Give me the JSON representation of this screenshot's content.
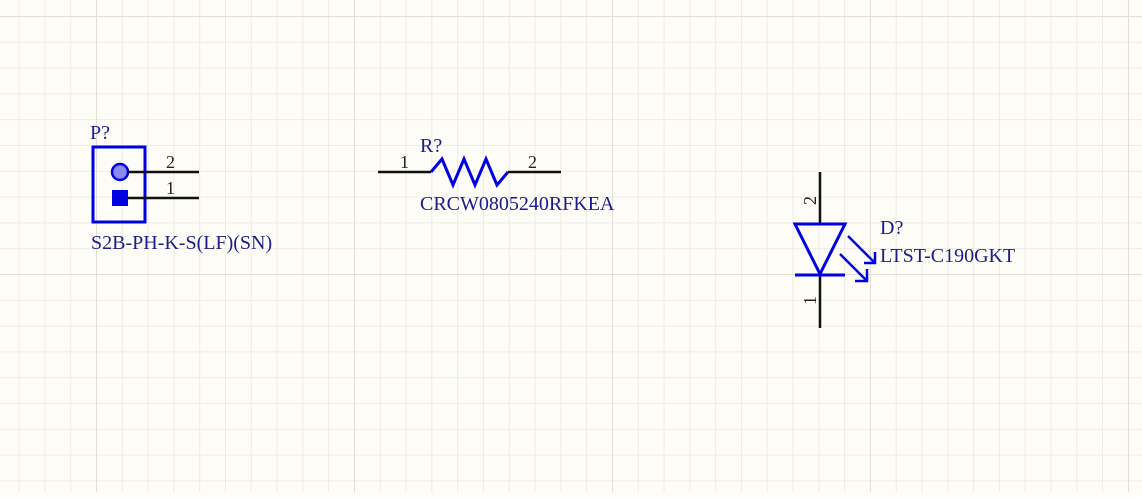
{
  "schematic": {
    "connector": {
      "designator": "P?",
      "value": "S2B-PH-K-S(LF)(SN)",
      "pins": [
        "2",
        "1"
      ]
    },
    "resistor": {
      "designator": "R?",
      "value": "CRCW0805240RFKEA",
      "pins": [
        "1",
        "2"
      ]
    },
    "led": {
      "designator": "D?",
      "value": "LTST-C190GKT",
      "pins": [
        "2",
        "1"
      ]
    }
  },
  "colors": {
    "body": "#0000e0",
    "wire": "#111111",
    "text": "#1c1c8a",
    "grid": "#dfdfd6",
    "background": "#fdfcf6"
  }
}
